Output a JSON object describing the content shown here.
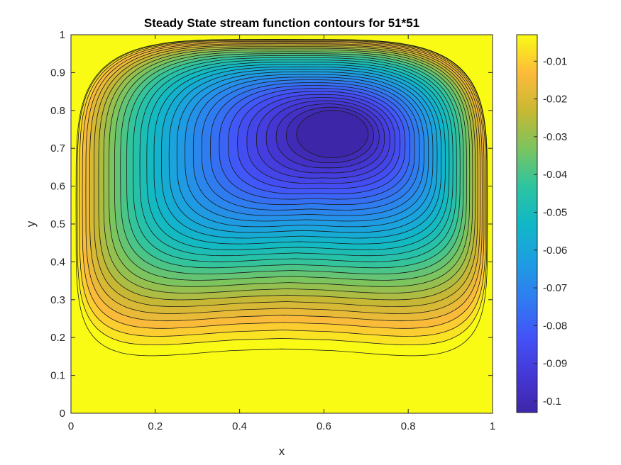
{
  "chart_data": {
    "type": "contour",
    "title": "Steady State stream function contours for 51*51",
    "xlabel": "x",
    "ylabel": "y",
    "xlim": [
      0,
      1
    ],
    "ylim": [
      0,
      1
    ],
    "x_ticks": [
      "0",
      "0.2",
      "0.4",
      "0.6",
      "0.8",
      "1"
    ],
    "y_ticks": [
      "0",
      "0.1",
      "0.2",
      "0.3",
      "0.4",
      "0.5",
      "0.6",
      "0.7",
      "0.8",
      "0.9",
      "1"
    ],
    "colorbar": {
      "range": [
        -0.103,
        -0.003
      ],
      "ticks": [
        "-0.01",
        "-0.02",
        "-0.03",
        "-0.04",
        "-0.05",
        "-0.06",
        "-0.07",
        "-0.08",
        "-0.09",
        "-0.1"
      ],
      "colormap": "parula"
    },
    "vortex_center": {
      "x": 0.61,
      "y": 0.74,
      "value": -0.103
    },
    "grid": false
  }
}
